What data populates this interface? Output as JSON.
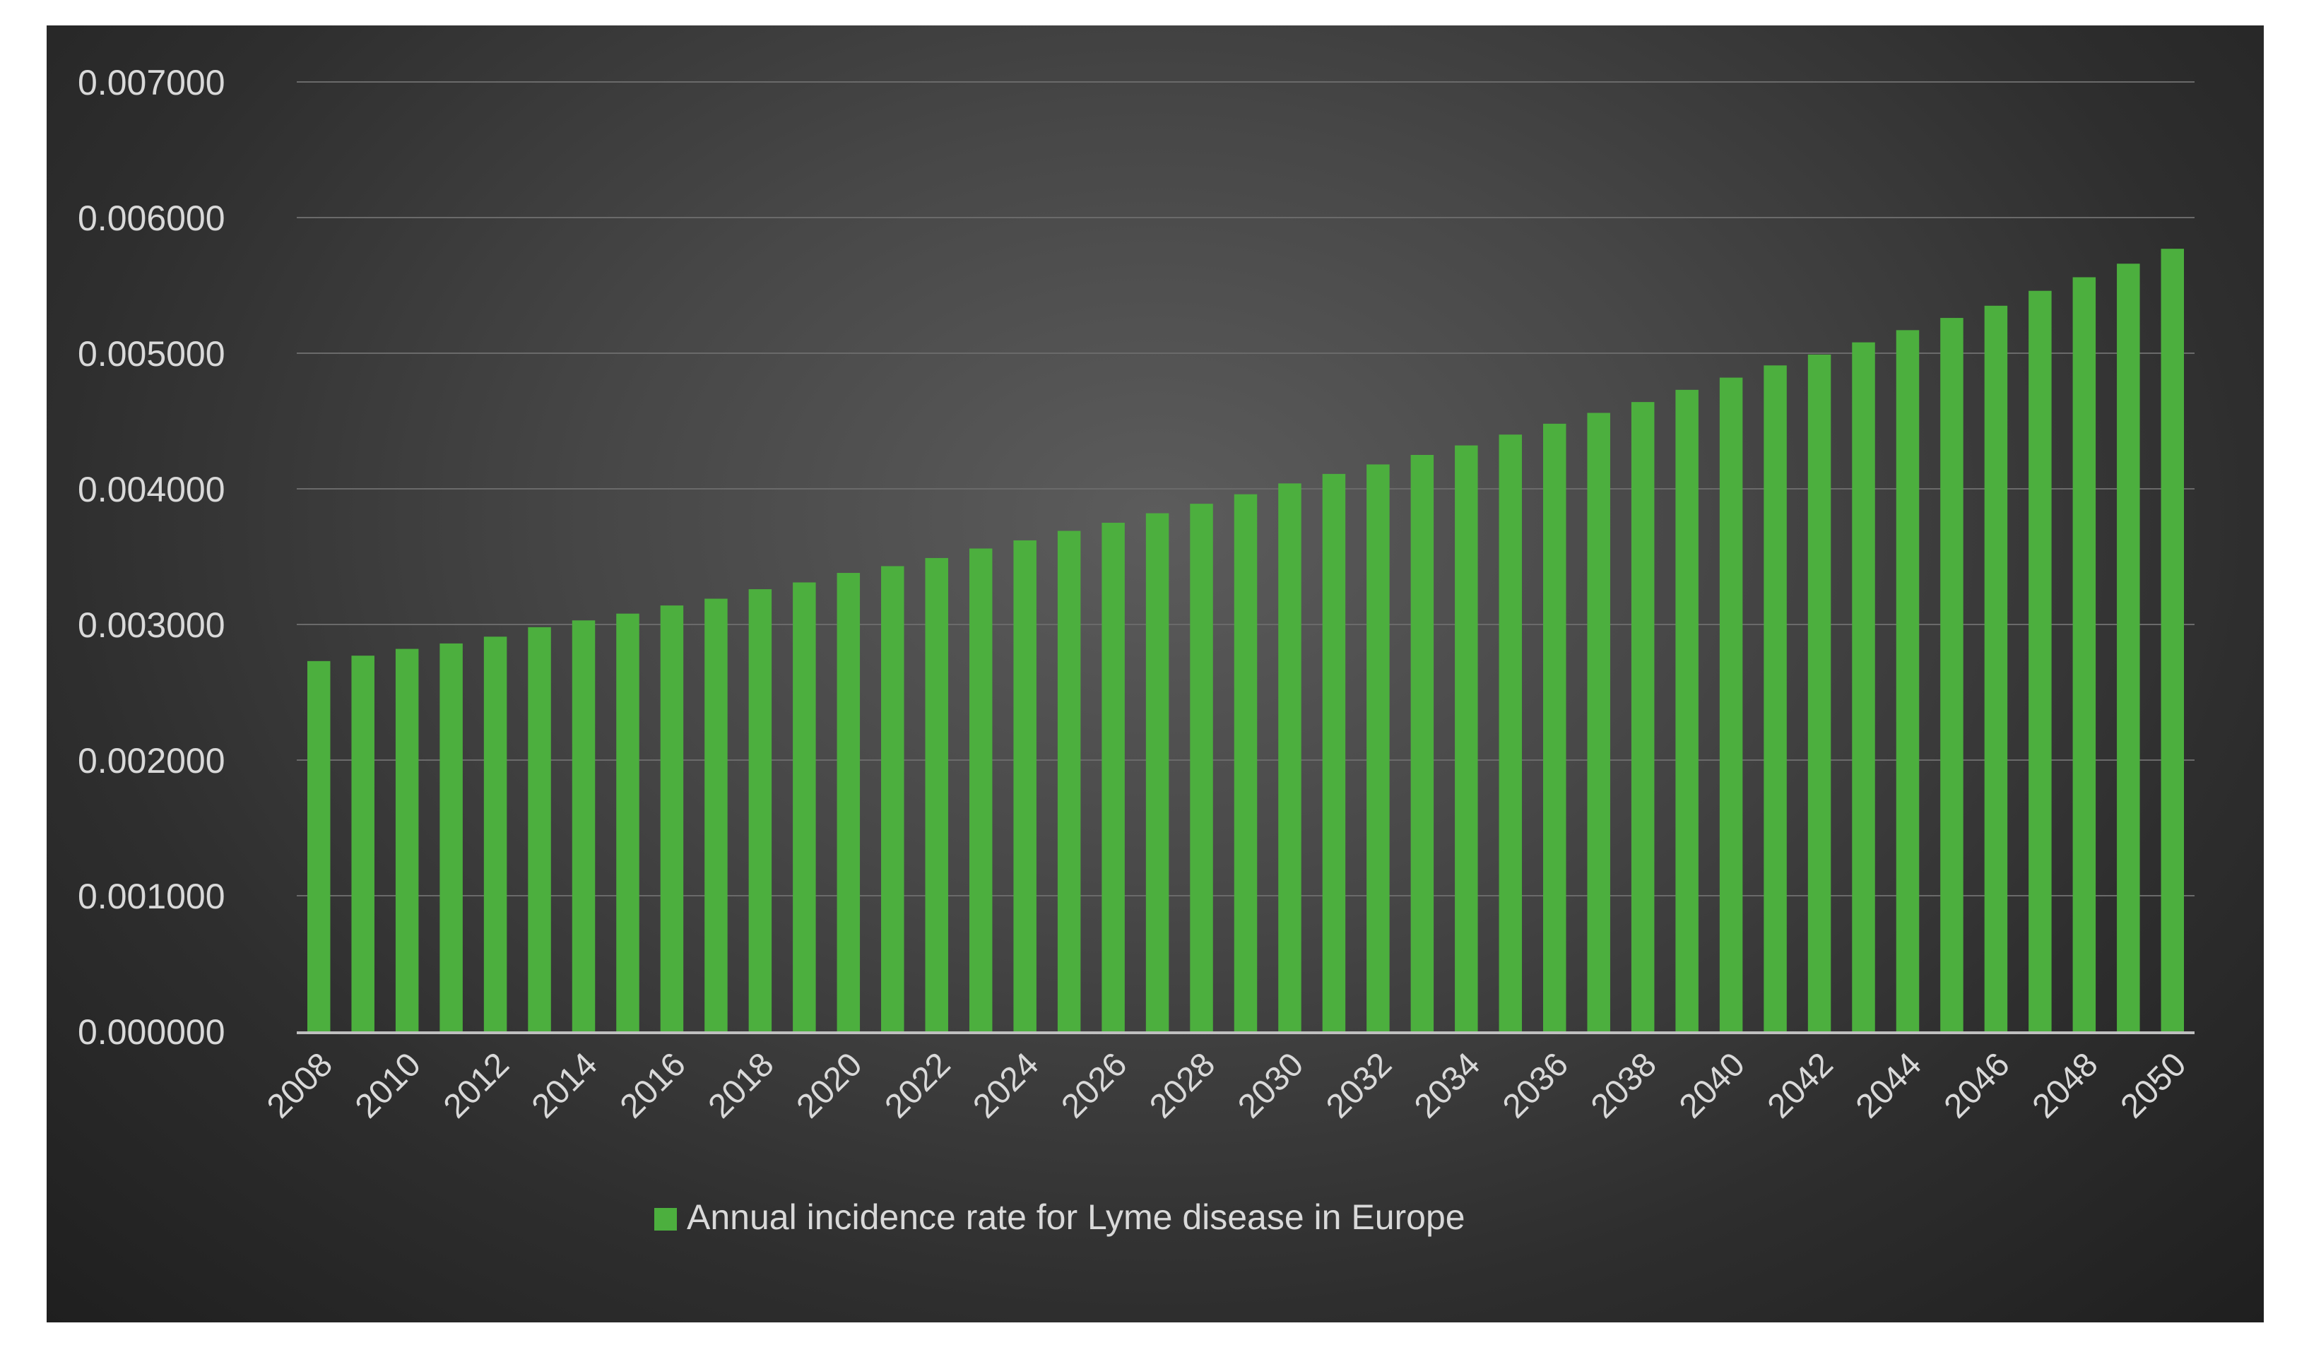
{
  "chart_data": {
    "type": "bar",
    "title": "",
    "xlabel": "",
    "ylabel": "",
    "ylim": [
      0,
      0.007
    ],
    "grid": true,
    "legend_position": "bottom",
    "bar_color": "#4caf3e",
    "background_color": "#3a3a3a",
    "y_ticks": [
      "0.000000",
      "0.001000",
      "0.002000",
      "0.003000",
      "0.004000",
      "0.005000",
      "0.006000",
      "0.007000"
    ],
    "x_tick_labels": [
      "2008",
      "2010",
      "2012",
      "2014",
      "2016",
      "2018",
      "2020",
      "2022",
      "2024",
      "2026",
      "2028",
      "2030",
      "2032",
      "2034",
      "2036",
      "2038",
      "2040",
      "2042",
      "2044",
      "2046",
      "2048",
      "2050"
    ],
    "categories": [
      "2008",
      "2009",
      "2010",
      "2011",
      "2012",
      "2013",
      "2014",
      "2015",
      "2016",
      "2017",
      "2018",
      "2019",
      "2020",
      "2021",
      "2022",
      "2023",
      "2024",
      "2025",
      "2026",
      "2027",
      "2028",
      "2029",
      "2030",
      "2031",
      "2032",
      "2033",
      "2034",
      "2035",
      "2036",
      "2037",
      "2038",
      "2039",
      "2040",
      "2041",
      "2042",
      "2043",
      "2044",
      "2045",
      "2046",
      "2047",
      "2048",
      "2049",
      "2050"
    ],
    "series": [
      {
        "name": "Annual incidence rate for Lyme disease in Europe",
        "values": [
          0.00273,
          0.00277,
          0.00282,
          0.00286,
          0.00291,
          0.00298,
          0.00303,
          0.00308,
          0.00314,
          0.00319,
          0.00326,
          0.00331,
          0.00338,
          0.00343,
          0.00349,
          0.00356,
          0.00362,
          0.00369,
          0.00375,
          0.00382,
          0.00389,
          0.00396,
          0.00404,
          0.00411,
          0.00418,
          0.00425,
          0.00432,
          0.0044,
          0.00448,
          0.00456,
          0.00464,
          0.00473,
          0.00482,
          0.00491,
          0.00499,
          0.00508,
          0.00517,
          0.00526,
          0.00535,
          0.00546,
          0.00556,
          0.00566,
          0.00577
        ]
      }
    ]
  }
}
